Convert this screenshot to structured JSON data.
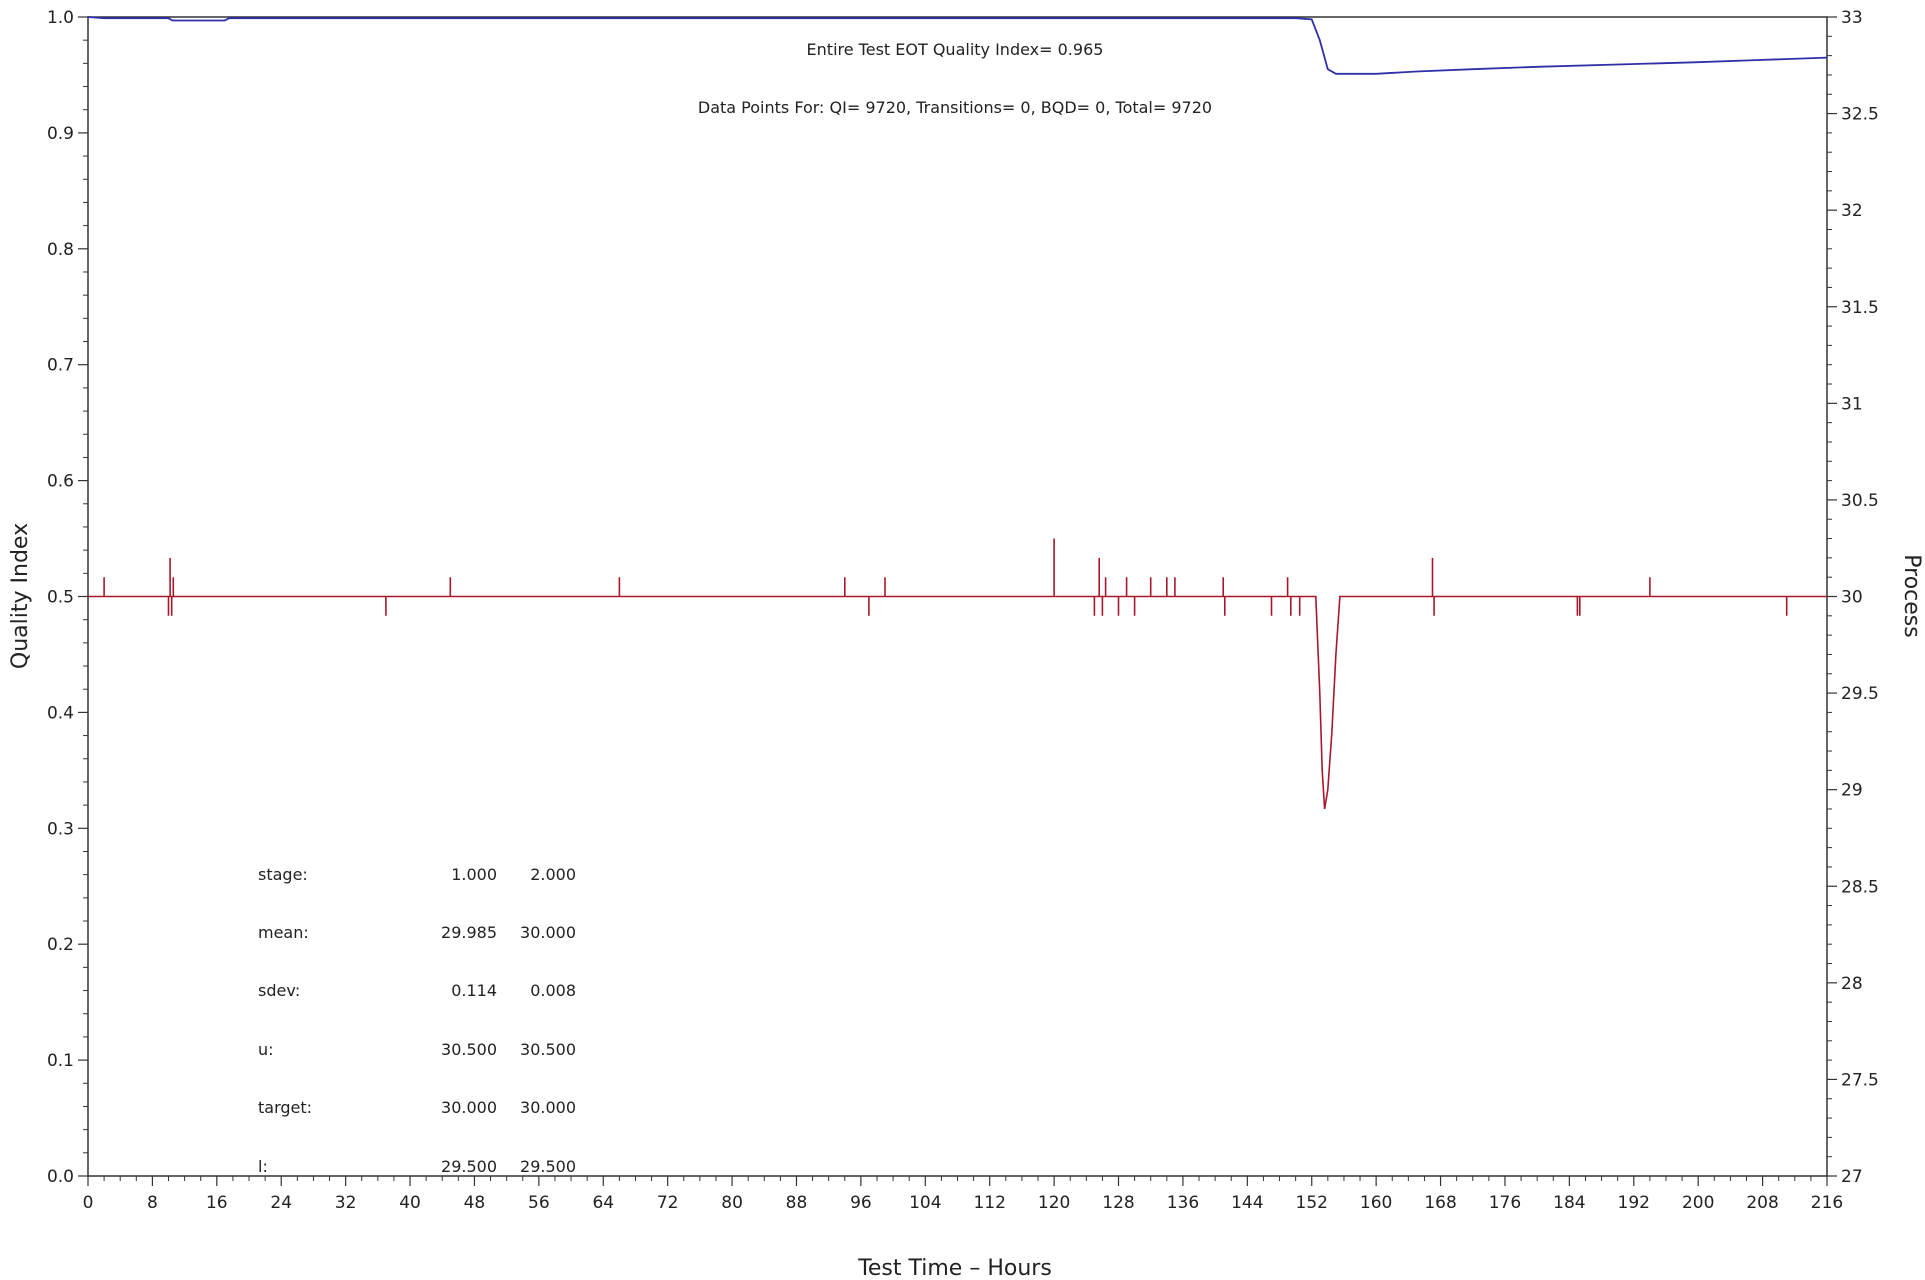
{
  "chart_data": {
    "type": "line",
    "xlabel": "Test Time – Hours",
    "ylabel": "Quality Index",
    "y2label": "Process",
    "xlim": [
      0,
      216
    ],
    "ylim": [
      0.0,
      1.0
    ],
    "y2lim": [
      27,
      33
    ],
    "x_ticks": [
      0,
      8,
      16,
      24,
      32,
      40,
      48,
      56,
      64,
      72,
      80,
      88,
      96,
      104,
      112,
      120,
      128,
      136,
      144,
      152,
      160,
      168,
      176,
      184,
      192,
      200,
      208,
      216
    ],
    "y_ticks": [
      "0.0",
      "0.1",
      "0.2",
      "0.3",
      "0.4",
      "0.5",
      "0.6",
      "0.7",
      "0.8",
      "0.9",
      "1.0"
    ],
    "y2_ticks": [
      "27",
      "27.5",
      "28",
      "28.5",
      "29",
      "29.5",
      "30",
      "30.5",
      "31",
      "31.5",
      "32",
      "32.5",
      "33"
    ],
    "grid": false,
    "annotations": [
      "Entire Test EOT Quality Index=   0.965",
      "Data Points For: QI=  9720, Transitions=     0, BQD=     0, Total=  9720"
    ],
    "stats_table": {
      "rows": [
        {
          "label": "stage:",
          "v1": "1.000",
          "v2": "2.000"
        },
        {
          "label": "mean:",
          "v1": "29.985",
          "v2": "30.000"
        },
        {
          "label": "sdev:",
          "v1": "0.114",
          "v2": "0.008"
        },
        {
          "label": "u:",
          "v1": "30.500",
          "v2": "30.500"
        },
        {
          "label": "target:",
          "v1": "30.000",
          "v2": "30.000"
        },
        {
          "label": "l:",
          "v1": "29.500",
          "v2": "29.500"
        }
      ]
    },
    "series": [
      {
        "axis": "left",
        "color": "#2f2fa8",
        "points": [
          [
            0,
            1.0
          ],
          [
            2,
            0.999
          ],
          [
            10,
            0.999
          ],
          [
            10.5,
            0.997
          ],
          [
            17,
            0.997
          ],
          [
            17.5,
            0.999
          ],
          [
            150,
            0.999
          ],
          [
            152,
            0.998
          ],
          [
            153,
            0.98
          ],
          [
            154,
            0.955
          ],
          [
            155,
            0.951
          ],
          [
            160,
            0.951
          ],
          [
            165,
            0.953
          ],
          [
            172,
            0.955
          ],
          [
            180,
            0.957
          ],
          [
            190,
            0.959
          ],
          [
            200,
            0.961
          ],
          [
            208,
            0.963
          ],
          [
            216,
            0.965
          ]
        ]
      },
      {
        "axis": "right",
        "color": "#a8182a",
        "baseline": 30.0,
        "spikes": [
          [
            2,
            30.1
          ],
          [
            10,
            29.9
          ],
          [
            10.2,
            30.2
          ],
          [
            10.4,
            29.9
          ],
          [
            10.6,
            30.1
          ],
          [
            37,
            29.9
          ],
          [
            45,
            30.1
          ],
          [
            66,
            30.1
          ],
          [
            94,
            30.1
          ],
          [
            97,
            29.9
          ],
          [
            99,
            30.1
          ],
          [
            120,
            30.3
          ],
          [
            125,
            29.9
          ],
          [
            125.6,
            30.2
          ],
          [
            126,
            29.9
          ],
          [
            126.4,
            30.1
          ],
          [
            128,
            29.9
          ],
          [
            129,
            30.1
          ],
          [
            130,
            29.9
          ],
          [
            132,
            30.1
          ],
          [
            134,
            30.1
          ],
          [
            135,
            30.1
          ],
          [
            141,
            30.1
          ],
          [
            141.2,
            29.9
          ],
          [
            147,
            29.9
          ],
          [
            149,
            30.1
          ],
          [
            149.4,
            29.9
          ],
          [
            150.5,
            29.9
          ],
          [
            167,
            30.2
          ],
          [
            167.2,
            29.9
          ],
          [
            185,
            29.9
          ],
          [
            185.3,
            29.9
          ],
          [
            194,
            30.1
          ],
          [
            211,
            29.9
          ]
        ],
        "dip": [
          [
            152.5,
            30.0
          ],
          [
            153,
            29.5
          ],
          [
            153.3,
            29.1
          ],
          [
            153.6,
            28.9
          ],
          [
            154,
            29.0
          ],
          [
            154.5,
            29.3
          ],
          [
            155,
            29.7
          ],
          [
            155.5,
            30.0
          ]
        ]
      }
    ]
  }
}
